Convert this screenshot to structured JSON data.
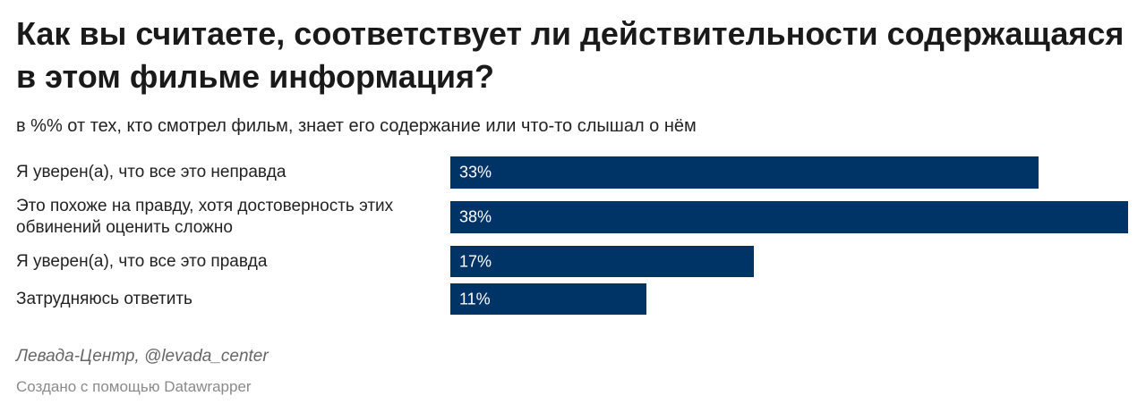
{
  "header": {
    "title": "Как вы считаете, соответствует ли действительности содержащаяся в этом фильме информация?",
    "subtitle": "в %% от тех, кто смотрел фильм, знает его содержание или что-то слышал о нём"
  },
  "footer": {
    "source": "Левада-Центр, @levada_center",
    "credit": "Создано с помощью Datawrapper"
  },
  "colors": {
    "bar": "#003366"
  },
  "chart_data": {
    "type": "bar",
    "orientation": "horizontal",
    "categories": [
      "Я уверен(а), что все это неправда",
      "Это похоже на правду, хотя достоверность этих обвинений оценить сложно",
      "Я уверен(а), что все это правда",
      "Затрудняюсь ответить"
    ],
    "values": [
      33,
      38,
      17,
      11
    ],
    "value_labels": [
      "33%",
      "38%",
      "17%",
      "11%"
    ],
    "xlim": [
      0,
      38
    ],
    "grid": false
  }
}
